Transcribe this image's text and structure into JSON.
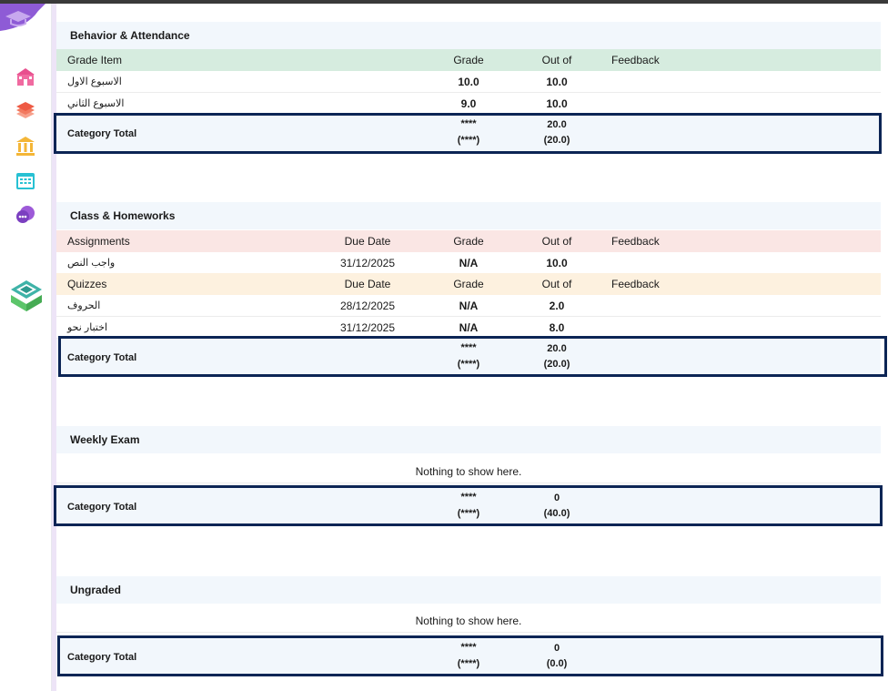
{
  "colors": {
    "accent_purple": "#8e5bd6",
    "highlight_border": "#0c2555",
    "header_green": "#d6ecdf",
    "header_red": "#fae6e4",
    "header_orange": "#fdf1df",
    "section_bg": "#f2f7fc"
  },
  "sidebar": {
    "icons": [
      "school-icon",
      "books-icon",
      "institution-icon",
      "calendar-icon",
      "chat-icon"
    ],
    "brand": "brand-logo-icon"
  },
  "sections": {
    "behavior": {
      "title": "Behavior & Attendance",
      "headers": {
        "item": "Grade Item",
        "grade": "Grade",
        "out_of": "Out of",
        "feedback": "Feedback"
      },
      "rows": [
        {
          "name": "الاسبوع الاول",
          "grade": "10.0",
          "out_of": "10.0"
        },
        {
          "name": "الاسبوع الثاني",
          "grade": "9.0",
          "out_of": "10.0"
        }
      ],
      "total": {
        "label": "Category Total",
        "grade": "****",
        "grade_sub": "(****)",
        "out_of": "20.0",
        "out_of_sub": "(20.0)"
      }
    },
    "class_homeworks": {
      "title": "Class & Homeworks",
      "assignments": {
        "headers": {
          "item": "Assignments",
          "due": "Due Date",
          "grade": "Grade",
          "out_of": "Out of",
          "feedback": "Feedback"
        },
        "rows": [
          {
            "name": "واجب النص",
            "due": "31/12/2025",
            "grade": "N/A",
            "out_of": "10.0"
          }
        ]
      },
      "quizzes": {
        "headers": {
          "item": "Quizzes",
          "due": "Due Date",
          "grade": "Grade",
          "out_of": "Out of",
          "feedback": "Feedback"
        },
        "rows": [
          {
            "name": "الحروف",
            "due": "28/12/2025",
            "grade": "N/A",
            "out_of": "2.0"
          },
          {
            "name": "اختبار نحو",
            "due": "31/12/2025",
            "grade": "N/A",
            "out_of": "8.0"
          }
        ]
      },
      "total": {
        "label": "Category Total",
        "grade": "****",
        "grade_sub": "(****)",
        "out_of": "20.0",
        "out_of_sub": "(20.0)"
      }
    },
    "weekly_exam": {
      "title": "Weekly Exam",
      "empty": "Nothing to show here.",
      "total": {
        "label": "Category Total",
        "grade": "****",
        "grade_sub": "(****)",
        "out_of": "0",
        "out_of_sub": "(40.0)"
      }
    },
    "ungraded": {
      "title": "Ungraded",
      "empty": "Nothing to show here.",
      "total": {
        "label": "Category Total",
        "grade": "****",
        "grade_sub": "(****)",
        "out_of": "0",
        "out_of_sub": "(0.0)"
      }
    }
  }
}
